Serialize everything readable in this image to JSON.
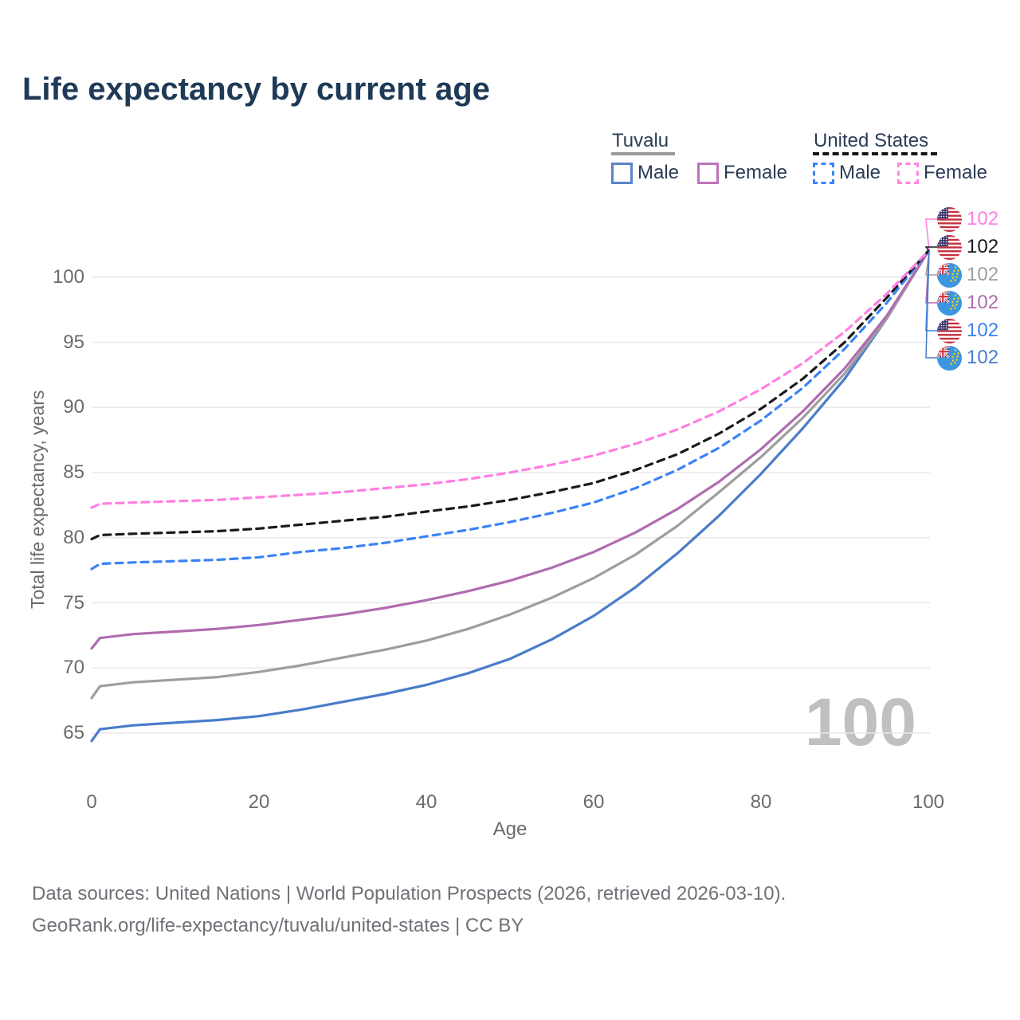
{
  "title": "Life expectancy by current age",
  "legend": {
    "tuvalu": {
      "title": "Tuvalu",
      "male": "Male",
      "female": "Female"
    },
    "united_states": {
      "title": "United States",
      "male": "Male",
      "female": "Female"
    }
  },
  "axes": {
    "y_title": "Total life expectancy, years",
    "x_title": "Age",
    "y_ticks": [
      65,
      70,
      75,
      80,
      85,
      90,
      95,
      100
    ],
    "x_ticks": [
      0,
      20,
      40,
      60,
      80,
      100
    ]
  },
  "watermark_age": "100",
  "endpoint_labels": [
    {
      "flag": "united-states-flag-icon",
      "value": "102",
      "color": "#ff7ee3",
      "series": "United States Female"
    },
    {
      "flag": "united-states-flag-icon",
      "value": "102",
      "color": "#1a1a1a",
      "series": "United States"
    },
    {
      "flag": "tuvalu-flag-icon",
      "value": "102",
      "color": "#9e9e9e",
      "series": "Tuvalu"
    },
    {
      "flag": "tuvalu-flag-icon",
      "value": "102",
      "color": "#b06cb0",
      "series": "Tuvalu Female"
    },
    {
      "flag": "united-states-flag-icon",
      "value": "102",
      "color": "#3b82f6",
      "series": "United States Male"
    },
    {
      "flag": "tuvalu-flag-icon",
      "value": "102",
      "color": "#4a7cc9",
      "series": "Tuvalu Male"
    }
  ],
  "footer": {
    "line1": "Data sources: United Nations | World Population Prospects (2026, retrieved 2026-03-10).",
    "line2": "GeoRank.org/life-expectancy/tuvalu/united-states | CC BY"
  },
  "theme": {
    "title_color": "#1e3a56",
    "grid_color": "#e9e9e9",
    "tick_color": "#6b6b6b",
    "watermark_color": "#c0c0c0",
    "tuvalu_male": "#4a7cc9",
    "tuvalu_female": "#b06cb0",
    "tuvalu_combined": "#9e9e9e",
    "us_male": "#3b82f6",
    "us_female": "#ff7ee3",
    "us_combined": "#1a1a1a"
  },
  "chart_data": {
    "type": "line",
    "title": "Life expectancy by current age",
    "xlabel": "Age",
    "ylabel": "Total life expectancy, years",
    "xlim": [
      0,
      100
    ],
    "ylim": [
      62,
      103
    ],
    "grid": true,
    "x": [
      0,
      1,
      5,
      10,
      15,
      20,
      25,
      30,
      35,
      40,
      45,
      50,
      55,
      60,
      65,
      70,
      75,
      80,
      85,
      90,
      95,
      100
    ],
    "series": [
      {
        "name": "Tuvalu Male",
        "country": "Tuvalu",
        "sex": "male",
        "style": "solid",
        "color": "#4a7cc9",
        "values": [
          64.4,
          65.3,
          65.6,
          65.8,
          66.0,
          66.3,
          66.8,
          67.4,
          68.0,
          68.7,
          69.6,
          70.7,
          72.2,
          74.0,
          76.2,
          78.8,
          81.7,
          84.9,
          88.4,
          92.2,
          96.8,
          102
        ]
      },
      {
        "name": "Tuvalu",
        "country": "Tuvalu",
        "sex": "both",
        "style": "solid",
        "color": "#9e9e9e",
        "values": [
          67.7,
          68.6,
          68.9,
          69.1,
          69.3,
          69.7,
          70.2,
          70.8,
          71.4,
          72.1,
          73.0,
          74.1,
          75.4,
          76.9,
          78.7,
          80.9,
          83.5,
          86.2,
          89.2,
          92.6,
          96.8,
          102
        ]
      },
      {
        "name": "Tuvalu Female",
        "country": "Tuvalu",
        "sex": "female",
        "style": "solid",
        "color": "#b06cb0",
        "values": [
          71.5,
          72.3,
          72.6,
          72.8,
          73.0,
          73.3,
          73.7,
          74.1,
          74.6,
          75.2,
          75.9,
          76.7,
          77.7,
          78.9,
          80.4,
          82.2,
          84.3,
          86.8,
          89.7,
          93.0,
          97.0,
          102
        ]
      },
      {
        "name": "United States Male",
        "country": "United States",
        "sex": "male",
        "style": "dashed",
        "color": "#3b82f6",
        "values": [
          77.6,
          78.0,
          78.1,
          78.2,
          78.3,
          78.5,
          78.9,
          79.2,
          79.6,
          80.1,
          80.6,
          81.2,
          81.9,
          82.7,
          83.8,
          85.2,
          86.9,
          89.0,
          91.5,
          94.5,
          98.0,
          102
        ]
      },
      {
        "name": "United States",
        "country": "United States",
        "sex": "both",
        "style": "dashed",
        "color": "#1a1a1a",
        "values": [
          79.9,
          80.2,
          80.3,
          80.4,
          80.5,
          80.7,
          81.0,
          81.3,
          81.6,
          82.0,
          82.4,
          82.9,
          83.5,
          84.2,
          85.2,
          86.4,
          88.0,
          89.9,
          92.2,
          95.0,
          98.4,
          102
        ]
      },
      {
        "name": "United States Female",
        "country": "United States",
        "sex": "female",
        "style": "dashed",
        "color": "#ff7ee3",
        "values": [
          82.3,
          82.6,
          82.7,
          82.8,
          82.9,
          83.1,
          83.3,
          83.5,
          83.8,
          84.1,
          84.5,
          85.0,
          85.6,
          86.3,
          87.2,
          88.3,
          89.7,
          91.4,
          93.4,
          95.8,
          98.7,
          102
        ]
      }
    ]
  }
}
